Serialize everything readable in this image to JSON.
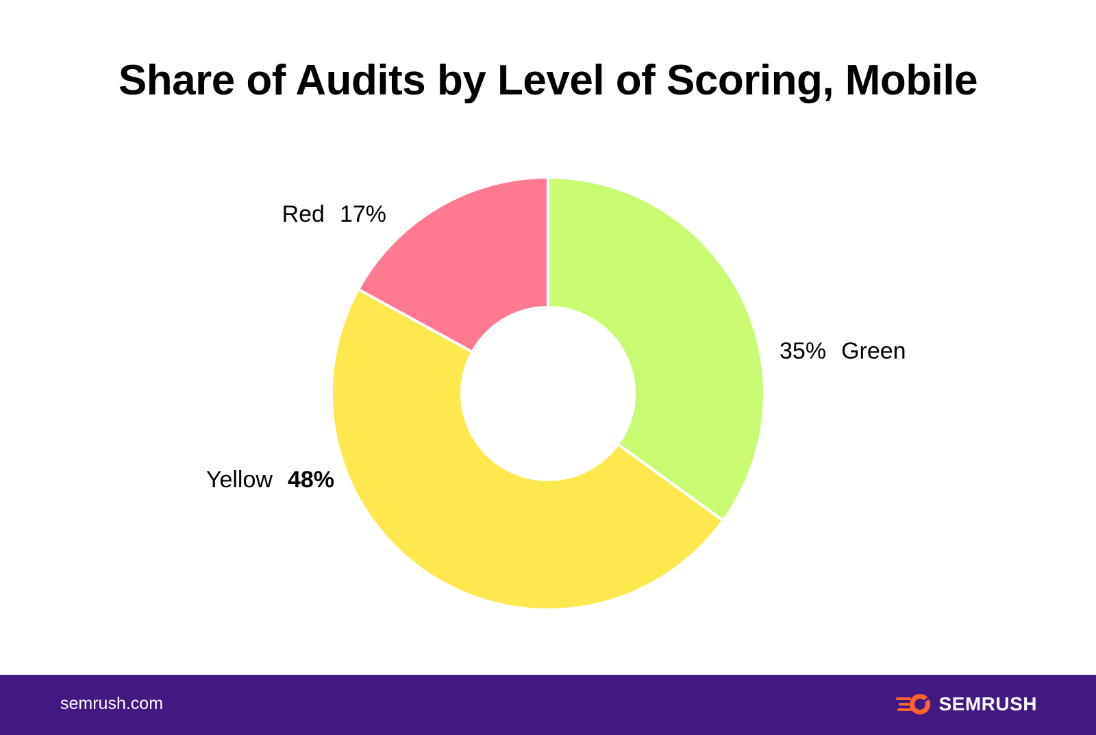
{
  "chart_data": {
    "type": "pie",
    "variant": "donut",
    "title": "Share of Audits by Level of Scoring, Mobile",
    "slices": [
      {
        "name": "Green",
        "value": 35,
        "label": "35%",
        "color": "#c8fb72",
        "emphasis": false
      },
      {
        "name": "Yellow",
        "value": 48,
        "label": "48%",
        "color": "#ffe74e",
        "emphasis": true
      },
      {
        "name": "Red",
        "value": 17,
        "label": "17%",
        "color": "#ff7a91",
        "emphasis": false
      }
    ]
  },
  "footer": {
    "site": "semrush.com",
    "brand": "SEMRUSH",
    "background_color": "#421983",
    "logo_color": "#ff642d"
  }
}
